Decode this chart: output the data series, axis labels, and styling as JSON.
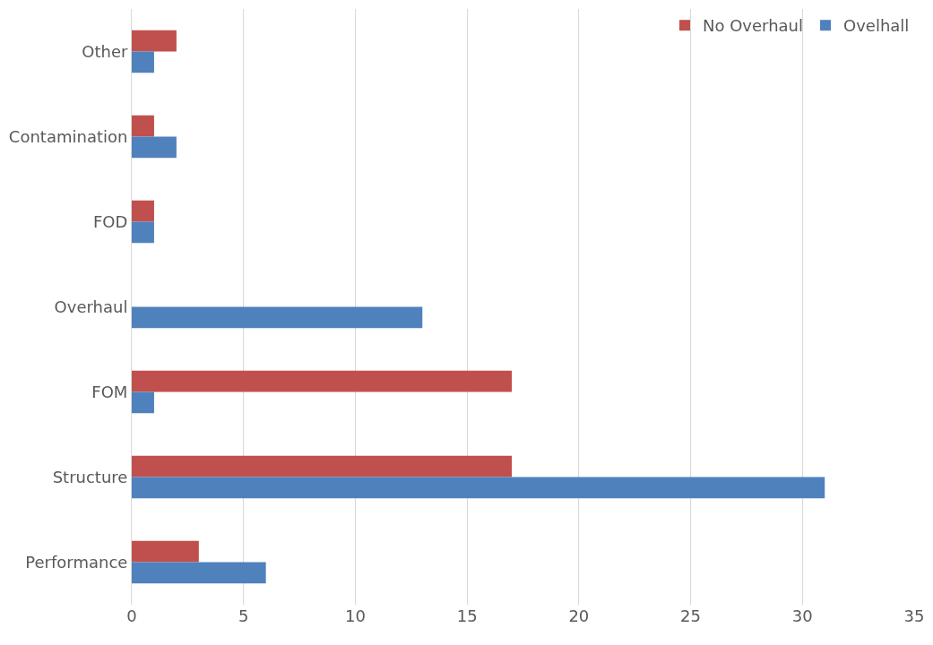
{
  "chart_data": {
    "type": "bar",
    "orientation": "horizontal",
    "categories": [
      "Other",
      "Contamination",
      "FOD",
      "Overhaul",
      "FOM",
      "Structure",
      "Performance"
    ],
    "series": [
      {
        "name": "No Overhaul",
        "color": "#c0504d",
        "values": [
          2,
          1,
          1,
          null,
          17,
          17,
          3
        ]
      },
      {
        "name": "Ovelhall",
        "color": "#4f81bd",
        "values": [
          1,
          2,
          1,
          13,
          1,
          31,
          6
        ]
      }
    ],
    "xlim": [
      0,
      35
    ],
    "xticks": [
      0,
      5,
      10,
      15,
      20,
      25,
      30,
      35
    ],
    "grid": "x",
    "legend": "top right"
  }
}
